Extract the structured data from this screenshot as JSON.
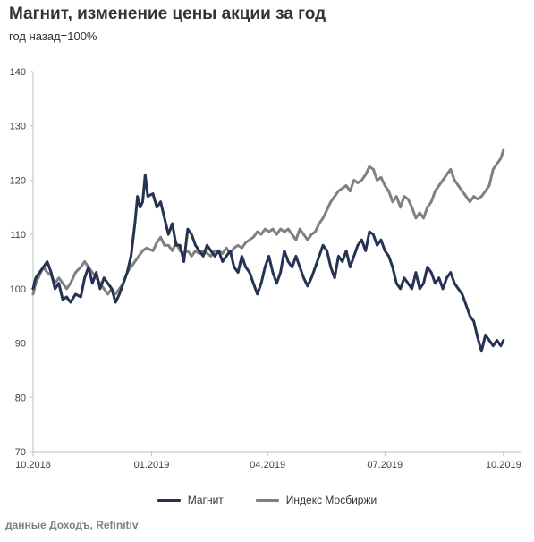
{
  "header": {
    "title": "Магнит, изменение цены акции за год",
    "subtitle": "год назад=100%"
  },
  "footer": {
    "source": "данные Доходъ, Refinitiv"
  },
  "chart_data": {
    "type": "line",
    "title": "Магнит, изменение цены акции за год",
    "subtitle": "год назад=100%",
    "ylim": [
      70,
      140
    ],
    "yticks": [
      70,
      80,
      90,
      100,
      110,
      120,
      130,
      140
    ],
    "xlim": [
      "2018-10-01",
      "2019-10-15"
    ],
    "xticks": [
      {
        "date": "2018-10-01",
        "label": "10.2018"
      },
      {
        "date": "2019-01-01",
        "label": "01.2019"
      },
      {
        "date": "2019-04-01",
        "label": "04.2019"
      },
      {
        "date": "2019-07-01",
        "label": "07.2019"
      },
      {
        "date": "2019-10-01",
        "label": "10.2019"
      }
    ],
    "grid": false,
    "legend_position": "bottom",
    "series": [
      {
        "name": "Магнит",
        "color": "#243352",
        "points": [
          [
            "2018-10-01",
            100
          ],
          [
            "2018-10-03",
            102
          ],
          [
            "2018-10-06",
            103
          ],
          [
            "2018-10-09",
            104
          ],
          [
            "2018-10-12",
            105
          ],
          [
            "2018-10-15",
            103
          ],
          [
            "2018-10-18",
            100
          ],
          [
            "2018-10-21",
            101
          ],
          [
            "2018-10-24",
            98
          ],
          [
            "2018-10-27",
            98.5
          ],
          [
            "2018-10-30",
            97.5
          ],
          [
            "2018-11-03",
            99
          ],
          [
            "2018-11-07",
            98.5
          ],
          [
            "2018-11-10",
            102
          ],
          [
            "2018-11-13",
            104
          ],
          [
            "2018-11-16",
            101
          ],
          [
            "2018-11-19",
            103
          ],
          [
            "2018-11-22",
            100
          ],
          [
            "2018-11-25",
            102
          ],
          [
            "2018-11-28",
            101
          ],
          [
            "2018-12-01",
            100
          ],
          [
            "2018-12-04",
            97.5
          ],
          [
            "2018-12-07",
            99
          ],
          [
            "2018-12-10",
            101
          ],
          [
            "2018-12-13",
            103
          ],
          [
            "2018-12-16",
            106
          ],
          [
            "2018-12-19",
            112
          ],
          [
            "2018-12-21",
            117
          ],
          [
            "2018-12-23",
            115
          ],
          [
            "2018-12-25",
            116
          ],
          [
            "2018-12-27",
            121
          ],
          [
            "2018-12-29",
            117
          ],
          [
            "2019-01-02",
            117.5
          ],
          [
            "2019-01-05",
            115
          ],
          [
            "2019-01-08",
            116
          ],
          [
            "2019-01-11",
            113
          ],
          [
            "2019-01-14",
            110
          ],
          [
            "2019-01-17",
            112
          ],
          [
            "2019-01-20",
            108
          ],
          [
            "2019-01-23",
            108
          ],
          [
            "2019-01-26",
            105
          ],
          [
            "2019-01-29",
            111
          ],
          [
            "2019-02-01",
            110
          ],
          [
            "2019-02-04",
            108
          ],
          [
            "2019-02-07",
            107
          ],
          [
            "2019-02-10",
            106
          ],
          [
            "2019-02-13",
            108
          ],
          [
            "2019-02-16",
            107
          ],
          [
            "2019-02-19",
            106
          ],
          [
            "2019-02-22",
            107
          ],
          [
            "2019-02-25",
            105
          ],
          [
            "2019-02-28",
            106
          ],
          [
            "2019-03-03",
            107
          ],
          [
            "2019-03-06",
            104
          ],
          [
            "2019-03-09",
            103
          ],
          [
            "2019-03-12",
            106
          ],
          [
            "2019-03-15",
            104
          ],
          [
            "2019-03-18",
            103
          ],
          [
            "2019-03-21",
            101
          ],
          [
            "2019-03-24",
            99
          ],
          [
            "2019-03-27",
            101
          ],
          [
            "2019-03-30",
            104
          ],
          [
            "2019-04-02",
            106
          ],
          [
            "2019-04-05",
            103
          ],
          [
            "2019-04-08",
            101
          ],
          [
            "2019-04-11",
            103
          ],
          [
            "2019-04-14",
            107
          ],
          [
            "2019-04-17",
            105
          ],
          [
            "2019-04-20",
            104
          ],
          [
            "2019-04-23",
            106
          ],
          [
            "2019-04-26",
            104
          ],
          [
            "2019-04-29",
            102
          ],
          [
            "2019-05-02",
            100.5
          ],
          [
            "2019-05-05",
            102
          ],
          [
            "2019-05-08",
            104
          ],
          [
            "2019-05-11",
            106
          ],
          [
            "2019-05-14",
            108
          ],
          [
            "2019-05-17",
            107
          ],
          [
            "2019-05-20",
            104
          ],
          [
            "2019-05-23",
            102
          ],
          [
            "2019-05-26",
            106
          ],
          [
            "2019-05-29",
            105
          ],
          [
            "2019-06-01",
            107
          ],
          [
            "2019-06-04",
            104
          ],
          [
            "2019-06-07",
            106
          ],
          [
            "2019-06-10",
            108
          ],
          [
            "2019-06-13",
            109
          ],
          [
            "2019-06-16",
            107
          ],
          [
            "2019-06-19",
            110.5
          ],
          [
            "2019-06-22",
            110
          ],
          [
            "2019-06-25",
            108
          ],
          [
            "2019-06-28",
            109
          ],
          [
            "2019-07-01",
            107
          ],
          [
            "2019-07-04",
            106
          ],
          [
            "2019-07-07",
            104
          ],
          [
            "2019-07-10",
            101
          ],
          [
            "2019-07-13",
            100
          ],
          [
            "2019-07-16",
            102
          ],
          [
            "2019-07-19",
            101
          ],
          [
            "2019-07-22",
            100
          ],
          [
            "2019-07-25",
            103
          ],
          [
            "2019-07-28",
            100
          ],
          [
            "2019-07-31",
            101
          ],
          [
            "2019-08-03",
            104
          ],
          [
            "2019-08-06",
            103
          ],
          [
            "2019-08-09",
            101
          ],
          [
            "2019-08-12",
            102
          ],
          [
            "2019-08-15",
            100
          ],
          [
            "2019-08-18",
            102
          ],
          [
            "2019-08-21",
            103
          ],
          [
            "2019-08-24",
            101
          ],
          [
            "2019-08-27",
            100
          ],
          [
            "2019-08-30",
            99
          ],
          [
            "2019-09-02",
            97
          ],
          [
            "2019-09-05",
            95
          ],
          [
            "2019-09-08",
            94
          ],
          [
            "2019-09-11",
            91
          ],
          [
            "2019-09-14",
            88.5
          ],
          [
            "2019-09-17",
            91.5
          ],
          [
            "2019-09-20",
            90.5
          ],
          [
            "2019-09-23",
            89.5
          ],
          [
            "2019-09-26",
            90.5
          ],
          [
            "2019-09-29",
            89.5
          ],
          [
            "2019-10-01",
            90.5
          ]
        ]
      },
      {
        "name": "Индекс Мосбиржи",
        "color": "#808080",
        "points": [
          [
            "2018-10-01",
            99
          ],
          [
            "2018-10-03",
            101
          ],
          [
            "2018-10-06",
            102.5
          ],
          [
            "2018-10-09",
            104
          ],
          [
            "2018-10-12",
            103
          ],
          [
            "2018-10-15",
            102.5
          ],
          [
            "2018-10-18",
            101
          ],
          [
            "2018-10-21",
            102
          ],
          [
            "2018-10-24",
            101
          ],
          [
            "2018-10-27",
            100
          ],
          [
            "2018-10-30",
            101
          ],
          [
            "2018-11-03",
            103
          ],
          [
            "2018-11-07",
            104
          ],
          [
            "2018-11-10",
            105
          ],
          [
            "2018-11-13",
            104
          ],
          [
            "2018-11-16",
            103
          ],
          [
            "2018-11-19",
            102
          ],
          [
            "2018-11-22",
            101
          ],
          [
            "2018-11-25",
            100
          ],
          [
            "2018-11-28",
            99
          ],
          [
            "2018-12-01",
            100
          ],
          [
            "2018-12-04",
            99
          ],
          [
            "2018-12-07",
            100
          ],
          [
            "2018-12-10",
            101
          ],
          [
            "2018-12-13",
            103
          ],
          [
            "2018-12-16",
            104
          ],
          [
            "2018-12-19",
            105
          ],
          [
            "2018-12-22",
            106
          ],
          [
            "2018-12-25",
            107
          ],
          [
            "2018-12-28",
            107.5
          ],
          [
            "2019-01-02",
            107
          ],
          [
            "2019-01-05",
            108.5
          ],
          [
            "2019-01-08",
            109.5
          ],
          [
            "2019-01-11",
            108
          ],
          [
            "2019-01-14",
            108
          ],
          [
            "2019-01-17",
            107
          ],
          [
            "2019-01-20",
            108.5
          ],
          [
            "2019-01-23",
            107
          ],
          [
            "2019-01-26",
            106.5
          ],
          [
            "2019-01-29",
            107
          ],
          [
            "2019-02-01",
            106
          ],
          [
            "2019-02-04",
            107
          ],
          [
            "2019-02-07",
            106.5
          ],
          [
            "2019-02-10",
            107
          ],
          [
            "2019-02-13",
            106.5
          ],
          [
            "2019-02-16",
            106
          ],
          [
            "2019-02-19",
            107
          ],
          [
            "2019-02-22",
            107
          ],
          [
            "2019-02-25",
            106.5
          ],
          [
            "2019-02-28",
            107.5
          ],
          [
            "2019-03-03",
            106.5
          ],
          [
            "2019-03-06",
            107.5
          ],
          [
            "2019-03-09",
            108
          ],
          [
            "2019-03-12",
            107.5
          ],
          [
            "2019-03-15",
            108.5
          ],
          [
            "2019-03-18",
            109
          ],
          [
            "2019-03-21",
            109.5
          ],
          [
            "2019-03-24",
            110.5
          ],
          [
            "2019-03-27",
            110
          ],
          [
            "2019-03-30",
            111
          ],
          [
            "2019-04-02",
            110.5
          ],
          [
            "2019-04-05",
            111
          ],
          [
            "2019-04-08",
            110
          ],
          [
            "2019-04-11",
            111
          ],
          [
            "2019-04-14",
            110.5
          ],
          [
            "2019-04-17",
            111
          ],
          [
            "2019-04-20",
            110
          ],
          [
            "2019-04-23",
            109
          ],
          [
            "2019-04-26",
            111
          ],
          [
            "2019-04-29",
            110
          ],
          [
            "2019-05-02",
            109
          ],
          [
            "2019-05-05",
            110
          ],
          [
            "2019-05-08",
            110.5
          ],
          [
            "2019-05-11",
            112
          ],
          [
            "2019-05-14",
            113
          ],
          [
            "2019-05-17",
            114.5
          ],
          [
            "2019-05-20",
            116
          ],
          [
            "2019-05-23",
            117
          ],
          [
            "2019-05-26",
            118
          ],
          [
            "2019-05-29",
            118.5
          ],
          [
            "2019-06-01",
            119
          ],
          [
            "2019-06-04",
            118
          ],
          [
            "2019-06-07",
            120
          ],
          [
            "2019-06-10",
            119.5
          ],
          [
            "2019-06-13",
            120
          ],
          [
            "2019-06-16",
            121
          ],
          [
            "2019-06-19",
            122.5
          ],
          [
            "2019-06-22",
            122
          ],
          [
            "2019-06-25",
            120
          ],
          [
            "2019-06-28",
            120.5
          ],
          [
            "2019-07-01",
            119
          ],
          [
            "2019-07-04",
            118
          ],
          [
            "2019-07-07",
            116
          ],
          [
            "2019-07-10",
            117
          ],
          [
            "2019-07-13",
            115
          ],
          [
            "2019-07-16",
            117
          ],
          [
            "2019-07-19",
            116.5
          ],
          [
            "2019-07-22",
            115
          ],
          [
            "2019-07-25",
            113
          ],
          [
            "2019-07-28",
            114
          ],
          [
            "2019-07-31",
            113
          ],
          [
            "2019-08-03",
            115
          ],
          [
            "2019-08-06",
            116
          ],
          [
            "2019-08-09",
            118
          ],
          [
            "2019-08-12",
            119
          ],
          [
            "2019-08-15",
            120
          ],
          [
            "2019-08-18",
            121
          ],
          [
            "2019-08-21",
            122
          ],
          [
            "2019-08-24",
            120
          ],
          [
            "2019-08-27",
            119
          ],
          [
            "2019-08-30",
            118
          ],
          [
            "2019-09-02",
            117
          ],
          [
            "2019-09-05",
            116
          ],
          [
            "2019-09-08",
            117
          ],
          [
            "2019-09-11",
            116.5
          ],
          [
            "2019-09-14",
            117
          ],
          [
            "2019-09-17",
            118
          ],
          [
            "2019-09-20",
            119
          ],
          [
            "2019-09-23",
            122
          ],
          [
            "2019-09-26",
            123
          ],
          [
            "2019-09-29",
            124
          ],
          [
            "2019-10-01",
            125.5
          ]
        ]
      }
    ]
  }
}
